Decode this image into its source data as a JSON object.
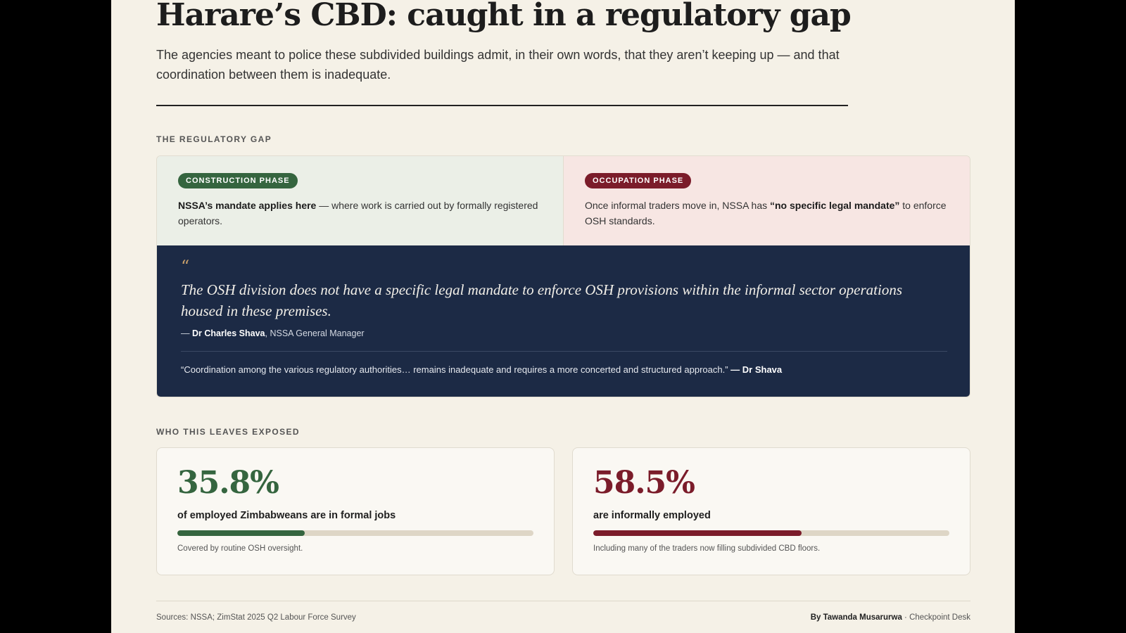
{
  "header": {
    "headline": "Harare’s CBD: caught in a regulatory gap",
    "dek": "The agencies meant to police these subdivided buildings admit, in their own words, that they aren’t keeping up — and that coordination between them is inadequate."
  },
  "regulatory_gap": {
    "section_label": "THE REGULATORY GAP",
    "construction": {
      "pill": "CONSTRUCTION PHASE",
      "bold": "NSSA’s mandate applies here",
      "rest": " — where work is carried out by formally registered operators."
    },
    "occupation": {
      "pre": "Once informal traders move in, NSSA has ",
      "pill": "OCCUPATION PHASE",
      "bold": "“no specific legal mandate”",
      "post": " to enforce OSH standards."
    },
    "quote": {
      "mark": "“",
      "text": "The OSH division does not have a specific legal mandate to enforce OSH provisions within the informal sector operations housed in these premises.",
      "attrib_dash": "— ",
      "attrib_name": "Dr Charles Shava",
      "attrib_role": ", NSSA General Manager",
      "secondary_text": "“Coordination among the various regulatory authorities… remains inadequate and requires a more concerted and structured approach.” ",
      "secondary_attrib": "— Dr Shava"
    }
  },
  "exposed": {
    "section_label": "WHO THIS LEAVES EXPOSED",
    "cards": [
      {
        "value": "35.8%",
        "fraction": 0.358,
        "label": "of employed Zimbabweans are in formal jobs",
        "note": "Covered by routine OSH oversight.",
        "color": "#35653f"
      },
      {
        "value": "58.5%",
        "fraction": 0.585,
        "label": "are informally employed",
        "note": "Including many of the traders now filling subdivided CBD floors.",
        "color": "#7b1c2a"
      }
    ]
  },
  "footer": {
    "sources": "Sources: NSSA; ZimStat 2025 Q2 Labour Force Survey",
    "byline_name": "By Tawanda Musarurwa",
    "byline_desk": " · Checkpoint Desk"
  }
}
